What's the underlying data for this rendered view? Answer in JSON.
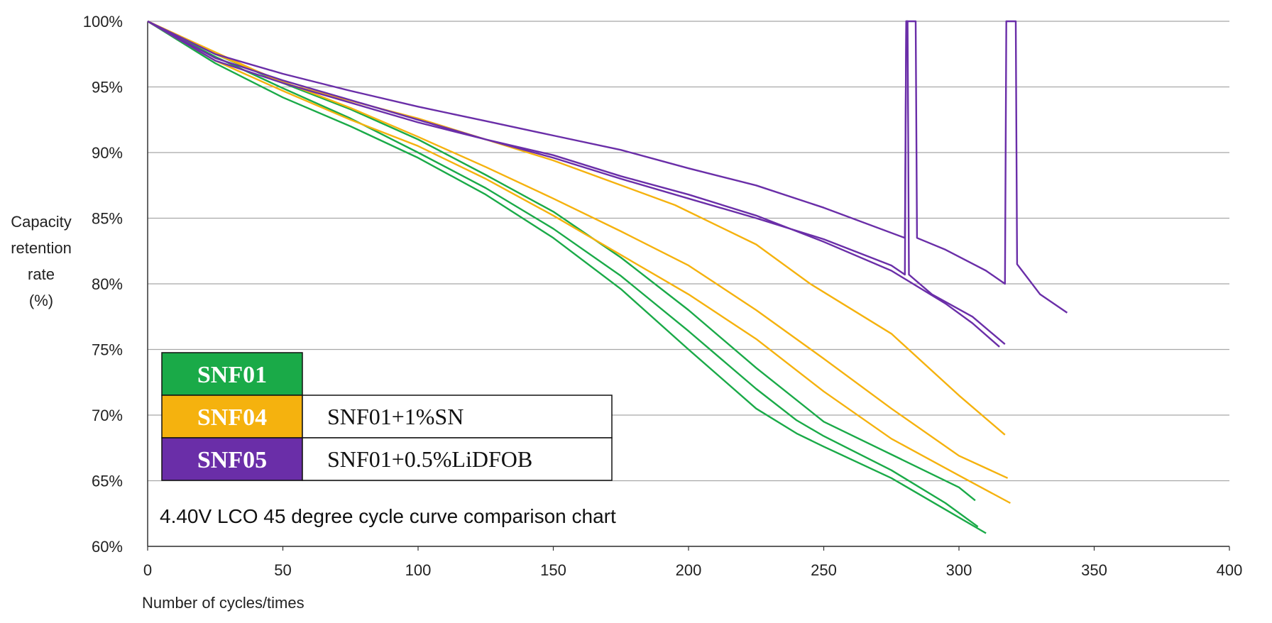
{
  "chart_data": {
    "type": "line",
    "title": "",
    "xlabel": "Number of cycles/times",
    "ylabel": [
      "Capacity",
      "retention",
      "rate",
      "(%)"
    ],
    "xlim": [
      0,
      400
    ],
    "ylim": [
      60,
      100
    ],
    "x_ticks": [
      0,
      50,
      100,
      150,
      200,
      250,
      300,
      350,
      400
    ],
    "y_ticks": [
      60,
      65,
      70,
      75,
      80,
      85,
      90,
      95,
      100
    ],
    "y_tick_labels": [
      "60%",
      "65%",
      "70%",
      "75%",
      "80%",
      "85%",
      "90%",
      "95%",
      "100%"
    ],
    "grid": "horizontal",
    "annotation": "4.40V LCO 45 degree cycle curve comparison chart",
    "legend": {
      "placement": "bottom-left",
      "entries": [
        {
          "code": "SNF01",
          "description": "",
          "color": "#1aaa48"
        },
        {
          "code": "SNF04",
          "description": "SNF01+1%SN",
          "color": "#f5b20e"
        },
        {
          "code": "SNF05",
          "description": "SNF01+0.5%LiDFOB",
          "color": "#6a2ea8"
        }
      ]
    },
    "series": [
      {
        "group": "SNF01",
        "color": "#1aaa48",
        "x": [
          0,
          25,
          50,
          75,
          100,
          125,
          150,
          175,
          200,
          225,
          240,
          250,
          275,
          295,
          310
        ],
        "y": [
          100,
          96.8,
          94.2,
          92.0,
          89.6,
          86.8,
          83.5,
          79.6,
          75.0,
          70.5,
          68.6,
          67.6,
          65.2,
          62.8,
          61.0
        ]
      },
      {
        "group": "SNF01",
        "color": "#1aaa48",
        "x": [
          0,
          25,
          50,
          75,
          100,
          125,
          150,
          175,
          200,
          225,
          240,
          250,
          275,
          295,
          307
        ],
        "y": [
          100,
          97.3,
          94.9,
          92.6,
          90.0,
          87.3,
          84.2,
          80.6,
          76.4,
          72.0,
          69.6,
          68.4,
          65.8,
          63.3,
          61.5
        ]
      },
      {
        "group": "SNF01",
        "color": "#1aaa48",
        "x": [
          0,
          25,
          50,
          75,
          100,
          125,
          150,
          175,
          200,
          225,
          250,
          275,
          300,
          306
        ],
        "y": [
          100,
          97.5,
          95.3,
          93.3,
          91.0,
          88.3,
          85.5,
          82.0,
          78.0,
          73.6,
          69.5,
          67.0,
          64.5,
          63.5
        ]
      },
      {
        "group": "SNF04",
        "color": "#f5b20e",
        "x": [
          0,
          25,
          50,
          75,
          100,
          125,
          150,
          175,
          200,
          225,
          250,
          275,
          300,
          318
        ],
        "y": [
          100,
          97.5,
          95.4,
          93.4,
          91.2,
          88.9,
          86.5,
          84.0,
          81.4,
          78.0,
          74.3,
          70.5,
          66.9,
          65.2
        ]
      },
      {
        "group": "SNF04",
        "color": "#f5b20e",
        "x": [
          0,
          25,
          50,
          75,
          100,
          125,
          150,
          175,
          200,
          225,
          250,
          275,
          300,
          319
        ],
        "y": [
          100,
          97.0,
          94.7,
          92.5,
          90.5,
          88.0,
          85.2,
          82.2,
          79.2,
          75.8,
          71.8,
          68.2,
          65.4,
          63.3
        ]
      },
      {
        "group": "SNF04",
        "color": "#f5b20e",
        "x": [
          0,
          50,
          100,
          150,
          195,
          225,
          245,
          275,
          300,
          317
        ],
        "y": [
          100,
          95.3,
          92.6,
          89.4,
          86.0,
          83.0,
          80.0,
          76.2,
          71.5,
          68.5
        ]
      },
      {
        "group": "SNF05",
        "color": "#6a2ea8",
        "x": [
          0,
          25,
          50,
          75,
          100,
          125,
          150,
          175,
          200,
          225,
          250,
          280,
          280.5,
          284,
          284.5,
          295,
          310,
          317,
          317.5,
          321,
          321.5,
          330,
          340
        ],
        "y": [
          100,
          97.5,
          96.0,
          94.7,
          93.5,
          92.4,
          91.3,
          90.2,
          88.8,
          87.5,
          85.8,
          83.5,
          100,
          100,
          83.5,
          82.6,
          81.0,
          80.0,
          100,
          100,
          81.5,
          79.2,
          77.8
        ]
      },
      {
        "group": "SNF05",
        "color": "#6a2ea8",
        "x": [
          0,
          25,
          50,
          75,
          100,
          125,
          150,
          175,
          200,
          225,
          250,
          275,
          280,
          280.5,
          281,
          281.5,
          290,
          305,
          317
        ],
        "y": [
          100,
          97.0,
          95.3,
          93.8,
          92.3,
          91.0,
          89.6,
          88.0,
          86.5,
          85.0,
          83.4,
          81.4,
          80.7,
          100,
          100,
          80.7,
          79.2,
          77.5,
          75.4
        ]
      },
      {
        "group": "SNF05",
        "color": "#6a2ea8",
        "x": [
          0,
          25,
          50,
          75,
          100,
          125,
          150,
          175,
          200,
          225,
          250,
          275,
          295,
          305,
          315
        ],
        "y": [
          100,
          97.2,
          95.5,
          94.0,
          92.5,
          91.0,
          89.8,
          88.2,
          86.8,
          85.2,
          83.2,
          81.0,
          78.5,
          77.0,
          75.2
        ]
      }
    ]
  }
}
